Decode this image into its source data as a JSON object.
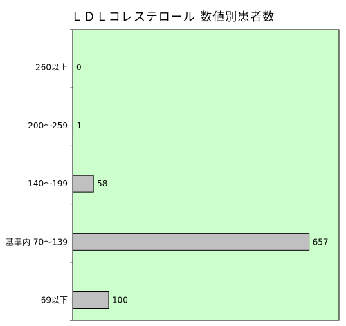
{
  "chart_data": {
    "type": "bar",
    "orientation": "horizontal",
    "title": "ＬＤＬコレステロール 数値別患者数",
    "categories": [
      "260以上",
      "200～259",
      "140～199",
      "基準内 70～139",
      "69以下"
    ],
    "values": [
      0,
      1,
      58,
      657,
      100
    ],
    "xlim": [
      0,
      700
    ],
    "grid": false,
    "legend": "none",
    "colors": {
      "plot_background": "#ccffcc",
      "bar_fill": "#c0c0c0",
      "bar_stroke": "#000000",
      "axis": "#000000"
    }
  }
}
